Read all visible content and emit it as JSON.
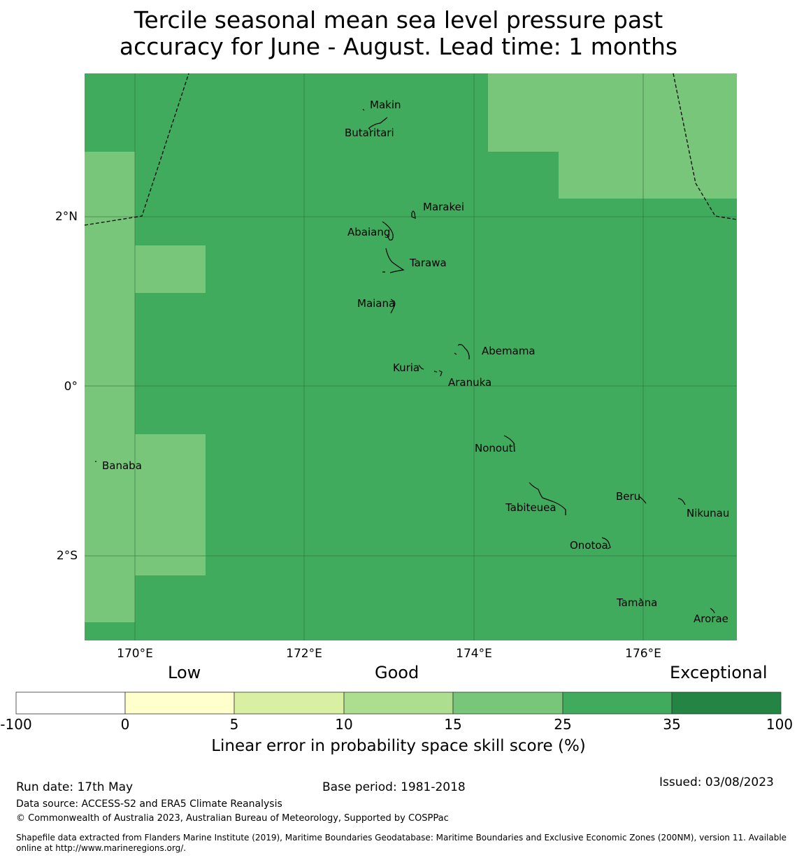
{
  "title": {
    "line1": "Tercile seasonal mean sea level pressure past",
    "line2": "accuracy for June - August. Lead time: 1 months"
  },
  "map": {
    "colors": {
      "good_35": "#41ab5d",
      "good_25": "#78c679",
      "exceptional": "#238443",
      "gridline": "#2e6b3a",
      "coast": "#000000"
    },
    "lon_labels": [
      "170°E",
      "172°E",
      "174°E",
      "176°E"
    ],
    "lat_labels": [
      "2°N",
      "0°",
      "2°S"
    ],
    "islands": [
      "Makin",
      "Butaritari",
      "Marakei",
      "Abaiang",
      "Tarawa",
      "Maiana",
      "Abemama",
      "Kuria",
      "Aranuka",
      "Nonouti",
      "Banaba",
      "Beru",
      "Tabiteuea",
      "Nikunau",
      "Onotoa",
      "Tamana",
      "Arorae"
    ]
  },
  "colorbar": {
    "categories": [
      "Low",
      "Good",
      "Exceptional"
    ],
    "ticks": [
      "-100",
      "0",
      "5",
      "10",
      "15",
      "25",
      "35",
      "100"
    ],
    "colors": [
      "#ffffff",
      "#ffffcc",
      "#d9f0a3",
      "#addd8e",
      "#78c679",
      "#41ab5d",
      "#238443"
    ],
    "label": "Linear error in probability space skill score (%)"
  },
  "footer": {
    "run_date": "Run date: 17th May",
    "base_period": "Base period: 1981-2018",
    "issued": "Issued: 03/08/2023",
    "data_source": "Data source: ACCESS-S2 and ERA5 Climate Reanalysis",
    "copyright": "© Commonwealth of Australia 2023, Australian Bureau of Meteorology, Supported by COSPPac",
    "shapefile": "Shapefile data extracted from Flanders Marine Institute (2019), Maritime Boundaries Geodatabase: Maritime Boundaries and Exclusive Economic Zones (200NM), version 11. Available online at http://www.marineregions.org/."
  }
}
